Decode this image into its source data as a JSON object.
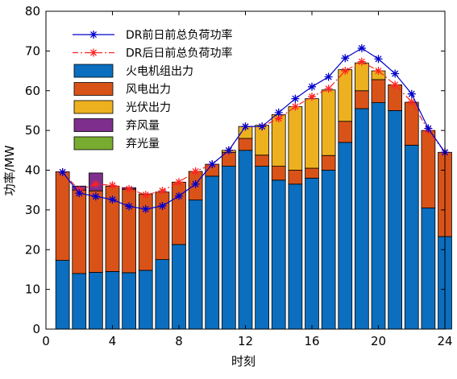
{
  "chart_data": {
    "type": "bar",
    "stacked": true,
    "xlabel": "时刻",
    "ylabel": "功率/MW",
    "xlim": [
      0,
      24
    ],
    "ylim": [
      0,
      80
    ],
    "xticks": [
      0,
      4,
      8,
      12,
      16,
      20,
      24
    ],
    "yticks": [
      0,
      10,
      20,
      30,
      40,
      50,
      60,
      70,
      80
    ],
    "grid": false,
    "legend_position": "top-left",
    "x": [
      1,
      2,
      3,
      4,
      5,
      6,
      7,
      8,
      9,
      10,
      11,
      12,
      13,
      14,
      15,
      16,
      17,
      18,
      19,
      20,
      21,
      22,
      23,
      24
    ],
    "bar_series": [
      {
        "name": "火电机组出力",
        "color": "#0B6EBF",
        "values": [
          17.3,
          14.0,
          14.3,
          14.5,
          14.2,
          14.8,
          17.5,
          21.3,
          32.5,
          38.5,
          41.0,
          45.0,
          41.0,
          37.5,
          36.5,
          38.0,
          40.0,
          47.0,
          55.5,
          57.0,
          55.0,
          46.3,
          30.5,
          23.3
        ]
      },
      {
        "name": "风电出力",
        "color": "#D95319",
        "values": [
          22.3,
          21.0,
          20.5,
          21.5,
          21.0,
          19.2,
          17.0,
          15.7,
          7.2,
          3.0,
          3.5,
          3.0,
          2.8,
          3.5,
          3.5,
          2.5,
          3.7,
          5.3,
          4.5,
          5.8,
          6.5,
          10.8,
          19.5,
          21.2
        ]
      },
      {
        "name": "光伏出力",
        "color": "#EDB120",
        "values": [
          0,
          0,
          0,
          0,
          0,
          0,
          0,
          0,
          0,
          0,
          0.5,
          3.0,
          7.5,
          13.0,
          16.0,
          17.5,
          16.5,
          13.0,
          7.0,
          2.2,
          0,
          0,
          0,
          0
        ]
      },
      {
        "name": "弃风量",
        "color": "#7E2F8E",
        "values": [
          0,
          1.0,
          4.5,
          0,
          0.4,
          0,
          0,
          0,
          0,
          0,
          0,
          0,
          0,
          0,
          0,
          0,
          0,
          0,
          0,
          0,
          0,
          0,
          0,
          0
        ]
      },
      {
        "name": "弃光量",
        "color": "#77AC30",
        "values": [
          0,
          0,
          0,
          0,
          0,
          0,
          0,
          0,
          0,
          0,
          0,
          0,
          0,
          0,
          0,
          0,
          0,
          0,
          0,
          0,
          0,
          0,
          0,
          0
        ]
      }
    ],
    "line_series": [
      {
        "name": "DR前日前总负荷功率",
        "color": "#0000CC",
        "marker": "*",
        "line_style": "solid",
        "values": [
          39.5,
          34.2,
          33.4,
          32.6,
          30.9,
          30.2,
          31.0,
          33.5,
          36.5,
          41.5,
          45.0,
          51.0,
          51.0,
          54.5,
          58.0,
          61.0,
          63.5,
          68.2,
          70.7,
          68.0,
          64.3,
          59.2,
          50.5,
          44.5
        ]
      },
      {
        "name": "DR后日前总负荷功率",
        "color": "#FF2222",
        "marker": "*",
        "line_style": "dashdot",
        "values": [
          39.5,
          35.0,
          36.5,
          36.2,
          35.3,
          33.8,
          34.8,
          37.0,
          39.7,
          41.5,
          45.0,
          51.0,
          51.0,
          53.0,
          56.0,
          58.5,
          60.5,
          65.0,
          67.3,
          65.0,
          61.5,
          57.2,
          50.0,
          44.5
        ]
      }
    ]
  }
}
